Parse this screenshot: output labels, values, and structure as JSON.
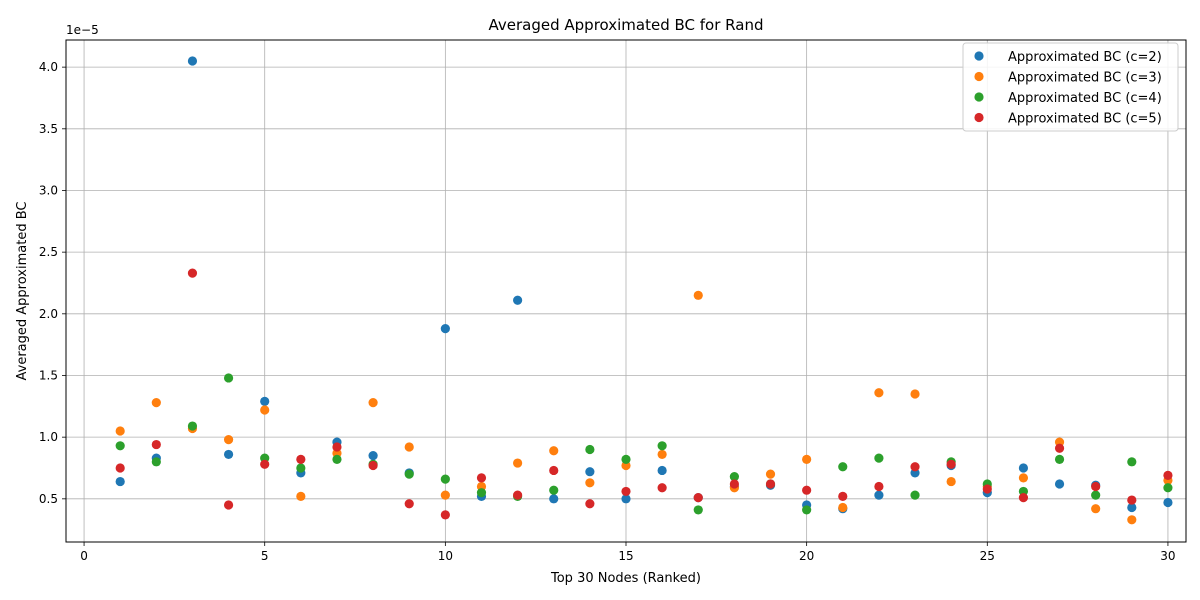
{
  "chart_data": {
    "type": "scatter",
    "title": "Averaged Approximated BC for Rand",
    "xlabel": "Top 30 Nodes (Ranked)",
    "ylabel": "Averaged Approximated BC",
    "y_multiplier_label": "1e−5",
    "xlim": [
      -0.5,
      30.5
    ],
    "ylim": [
      0.15,
      4.22
    ],
    "x_ticks": [
      0,
      5,
      10,
      15,
      20,
      25,
      30
    ],
    "y_ticks": [
      0.5,
      1.0,
      1.5,
      2.0,
      2.5,
      3.0,
      3.5,
      4.0
    ],
    "x_tick_labels": [
      "0",
      "5",
      "10",
      "15",
      "20",
      "25",
      "30"
    ],
    "y_tick_labels": [
      "0.5",
      "1.0",
      "1.5",
      "2.0",
      "2.5",
      "3.0",
      "3.5",
      "4.0"
    ],
    "grid": true,
    "legend_position": "top-right",
    "x": [
      1,
      2,
      3,
      4,
      5,
      6,
      7,
      8,
      9,
      10,
      11,
      12,
      13,
      14,
      15,
      16,
      17,
      18,
      19,
      20,
      21,
      22,
      23,
      24,
      25,
      26,
      27,
      28,
      29,
      30
    ],
    "series": [
      {
        "name": "Approximated BC (c=2)",
        "color": "#1f77b4",
        "values": [
          0.64,
          0.83,
          4.05,
          0.86,
          1.29,
          0.71,
          0.96,
          0.85,
          0.71,
          1.88,
          0.52,
          2.11,
          0.5,
          0.72,
          0.5,
          0.73,
          0.51,
          0.6,
          0.61,
          0.45,
          0.42,
          0.53,
          0.71,
          0.77,
          0.55,
          0.75,
          0.62,
          0.61,
          0.43,
          0.47
        ]
      },
      {
        "name": "Approximated BC (c=3)",
        "color": "#ff7f0e",
        "values": [
          1.05,
          1.28,
          1.07,
          0.98,
          1.22,
          0.52,
          0.87,
          1.28,
          0.92,
          0.53,
          0.6,
          0.79,
          0.89,
          0.63,
          0.77,
          0.86,
          2.15,
          0.59,
          0.7,
          0.82,
          0.43,
          1.36,
          1.35,
          0.64,
          0.6,
          0.67,
          0.96,
          0.42,
          0.33,
          0.65
        ]
      },
      {
        "name": "Approximated BC (c=4)",
        "color": "#2ca02c",
        "values": [
          0.93,
          0.8,
          1.09,
          1.48,
          0.83,
          0.75,
          0.82,
          0.78,
          0.7,
          0.66,
          0.55,
          0.52,
          0.57,
          0.9,
          0.82,
          0.93,
          0.41,
          0.68,
          0.62,
          0.41,
          0.76,
          0.83,
          0.53,
          0.8,
          0.62,
          0.56,
          0.82,
          0.53,
          0.8,
          0.59
        ]
      },
      {
        "name": "Approximated BC (c=5)",
        "color": "#d62728",
        "values": [
          0.75,
          0.94,
          2.33,
          0.45,
          0.78,
          0.82,
          0.92,
          0.77,
          0.46,
          0.37,
          0.67,
          0.53,
          0.73,
          0.46,
          0.56,
          0.59,
          0.51,
          0.62,
          0.62,
          0.57,
          0.52,
          0.6,
          0.76,
          0.78,
          0.58,
          0.51,
          0.91,
          0.6,
          0.49,
          0.69
        ]
      }
    ]
  }
}
